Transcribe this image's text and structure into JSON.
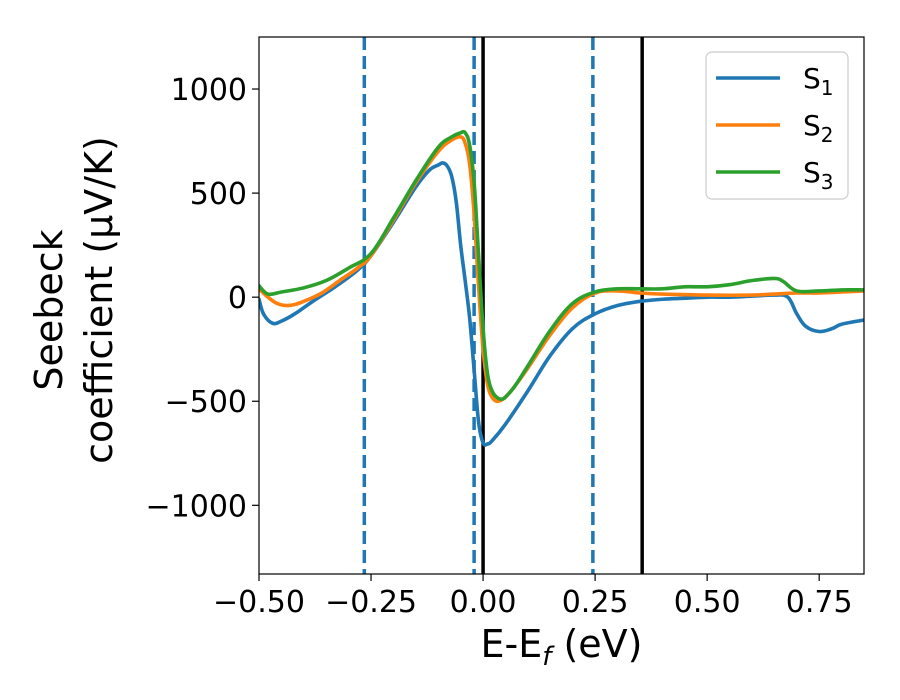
{
  "chart_data": {
    "type": "line",
    "xlabel_parts": [
      "E-E",
      "f",
      " (eV)"
    ],
    "ylabel_lines": [
      "Seebeck",
      "coefficient  (μV/K)"
    ],
    "xlim": [
      -0.5,
      0.85
    ],
    "ylim": [
      -1330,
      1250
    ],
    "x_ticks": [
      -0.5,
      -0.25,
      0.0,
      0.25,
      0.5,
      0.75
    ],
    "x_tick_labels": [
      "−0.50",
      "−0.25",
      "0.00",
      "0.25",
      "0.50",
      "0.75"
    ],
    "y_ticks": [
      -1000,
      -500,
      0,
      500,
      1000
    ],
    "y_tick_labels": [
      "−1000",
      "−500",
      "0",
      "500",
      "1000"
    ],
    "grid": false,
    "legend_position": "top-right",
    "vlines": [
      {
        "x": -0.265,
        "style": "dashed",
        "color": "#1f77b4"
      },
      {
        "x": -0.02,
        "style": "dashed",
        "color": "#1f77b4"
      },
      {
        "x": 0.245,
        "style": "dashed",
        "color": "#1f77b4"
      },
      {
        "x": 0.0,
        "style": "solid",
        "color": "#000000"
      },
      {
        "x": 0.355,
        "style": "solid",
        "color": "#000000"
      }
    ],
    "series": [
      {
        "name_base": "S",
        "name_sub": "1",
        "color": "#1f77b4",
        "x": [
          -0.5,
          -0.49,
          -0.47,
          -0.45,
          -0.42,
          -0.38,
          -0.33,
          -0.28,
          -0.25,
          -0.2,
          -0.15,
          -0.12,
          -0.1,
          -0.09,
          -0.08,
          -0.07,
          -0.06,
          -0.05,
          -0.04,
          -0.03,
          -0.02,
          -0.01,
          0.0,
          0.01,
          0.02,
          0.05,
          0.1,
          0.15,
          0.2,
          0.25,
          0.3,
          0.35,
          0.4,
          0.45,
          0.5,
          0.55,
          0.6,
          0.65,
          0.68,
          0.7,
          0.72,
          0.75,
          0.78,
          0.8,
          0.85
        ],
        "y": [
          -10,
          -80,
          -125,
          -115,
          -80,
          -20,
          50,
          130,
          200,
          360,
          530,
          610,
          635,
          645,
          630,
          580,
          460,
          250,
          80,
          -100,
          -350,
          -600,
          -700,
          -705,
          -690,
          -610,
          -450,
          -280,
          -150,
          -80,
          -40,
          -20,
          -10,
          -5,
          0,
          0,
          5,
          10,
          0,
          -80,
          -140,
          -165,
          -150,
          -130,
          -110
        ]
      },
      {
        "name_base": "S",
        "name_sub": "2",
        "color": "#ff7f0e",
        "x": [
          -0.5,
          -0.48,
          -0.46,
          -0.44,
          -0.42,
          -0.4,
          -0.36,
          -0.32,
          -0.28,
          -0.25,
          -0.2,
          -0.15,
          -0.1,
          -0.07,
          -0.05,
          -0.04,
          -0.03,
          -0.02,
          -0.01,
          0.0,
          0.01,
          0.02,
          0.03,
          0.04,
          0.05,
          0.07,
          0.1,
          0.15,
          0.2,
          0.25,
          0.3,
          0.35,
          0.4,
          0.5,
          0.6,
          0.65,
          0.7,
          0.75,
          0.8,
          0.85
        ],
        "y": [
          40,
          0,
          -30,
          -40,
          -35,
          -20,
          20,
          80,
          140,
          200,
          370,
          550,
          700,
          755,
          770,
          740,
          640,
          400,
          50,
          -250,
          -420,
          -480,
          -500,
          -495,
          -480,
          -430,
          -340,
          -180,
          -50,
          20,
          30,
          20,
          15,
          10,
          10,
          15,
          20,
          20,
          25,
          30
        ]
      },
      {
        "name_base": "S",
        "name_sub": "3",
        "color": "#2ca02c",
        "x": [
          -0.5,
          -0.48,
          -0.45,
          -0.4,
          -0.35,
          -0.3,
          -0.25,
          -0.2,
          -0.15,
          -0.1,
          -0.07,
          -0.05,
          -0.04,
          -0.03,
          -0.02,
          -0.01,
          0.0,
          0.01,
          0.02,
          0.03,
          0.04,
          0.05,
          0.07,
          0.1,
          0.15,
          0.2,
          0.25,
          0.3,
          0.35,
          0.4,
          0.45,
          0.5,
          0.55,
          0.6,
          0.65,
          0.67,
          0.7,
          0.75,
          0.8,
          0.85
        ],
        "y": [
          55,
          15,
          25,
          45,
          80,
          140,
          210,
          380,
          560,
          720,
          770,
          790,
          790,
          730,
          550,
          200,
          -150,
          -370,
          -450,
          -480,
          -490,
          -480,
          -430,
          -330,
          -160,
          -30,
          25,
          40,
          40,
          40,
          50,
          50,
          60,
          80,
          90,
          75,
          30,
          30,
          35,
          35
        ]
      }
    ]
  }
}
